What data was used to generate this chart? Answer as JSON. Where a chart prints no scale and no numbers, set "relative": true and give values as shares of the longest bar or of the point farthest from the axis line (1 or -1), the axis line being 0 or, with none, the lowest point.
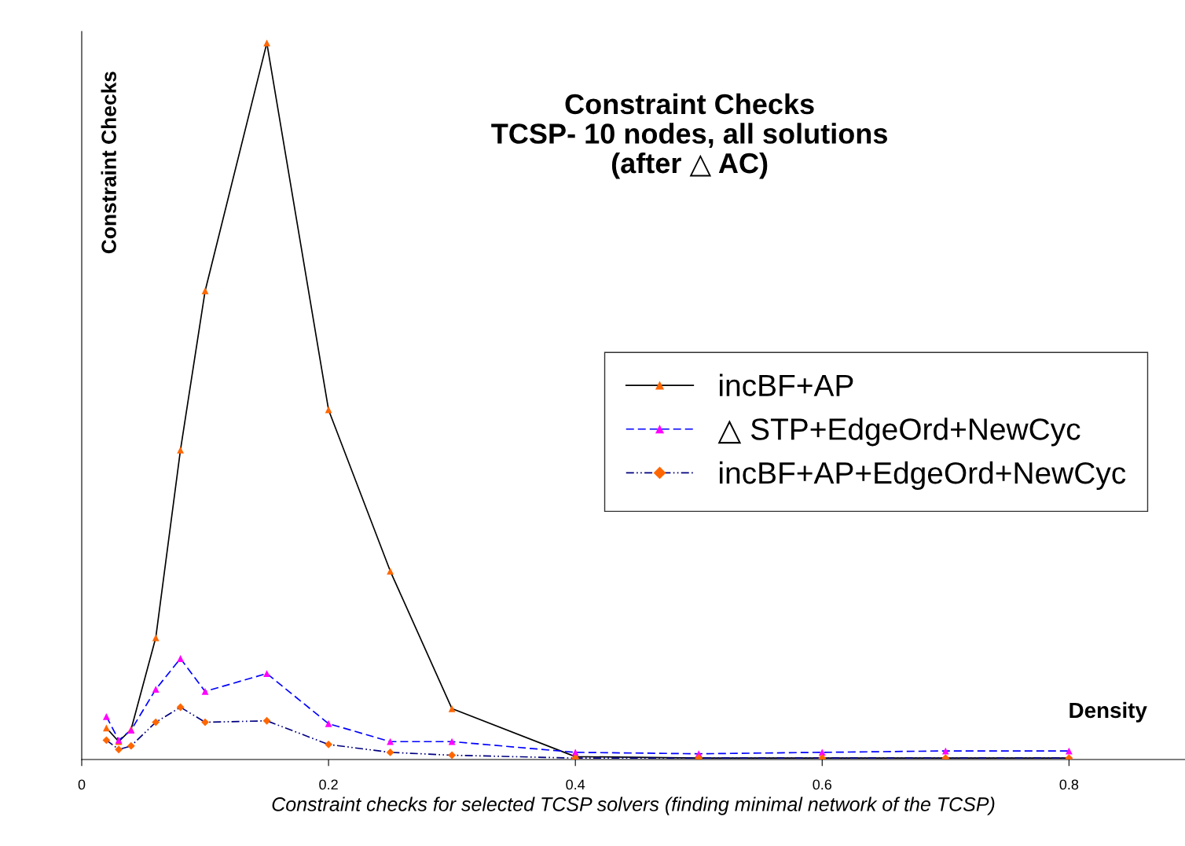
{
  "chart_data": {
    "type": "line",
    "title": "Constraint Checks\nTCSP- 10 nodes, all solutions\n(after △ AC)",
    "xlabel": "Constraint checks for selected TCSP solvers (finding minimal network of the TCSP)",
    "ylabel": "Constraint Checks",
    "annotations": [
      "Density"
    ],
    "x": [
      0.02,
      0.03,
      0.04,
      0.06,
      0.08,
      0.1,
      0.15,
      0.2,
      0.25,
      0.3,
      0.4,
      0.5,
      0.6,
      0.7,
      0.8
    ],
    "series": [
      {
        "name": "incBF+AP",
        "color": "#000000",
        "marker": "triangle",
        "line_style": "solid",
        "colors": [
          "#ff6600",
          "#ff6600",
          "#ff6600",
          "#ff6600",
          "#ff6600",
          "#ff6600",
          "#ff6600",
          "#ff6600",
          "#ff6600",
          "#ff6600",
          "#ff6600",
          "#ff6600",
          "#ff6600",
          "#ff6600",
          "#ff6600"
        ],
        "values": [
          0.044,
          0.025,
          0.042,
          0.17,
          0.432,
          0.654,
          1,
          0.488,
          0.263,
          0.071,
          0.004,
          0.002,
          0.002,
          0.002,
          0.002
        ]
      },
      {
        "name": "△ STP+EdgeOrd+NewCyc",
        "color": "#0000ff",
        "marker": "triangle",
        "line_style": "dashed",
        "colors": [
          "#ff00ff",
          "#ff00ff",
          "#ff00ff",
          "#ff00ff",
          "#ff00ff",
          "#ff00ff",
          "#ff00ff",
          "#ff00ff",
          "#ff00ff",
          "#ff00ff",
          "#ff00ff",
          "#ff00ff",
          "#ff00ff",
          "#ff00ff",
          "#ff00ff"
        ],
        "values": [
          0.06,
          0.027,
          0.041,
          0.098,
          0.141,
          0.095,
          0.12,
          0.05,
          0.025,
          0.025,
          0.01,
          0.008,
          0.01,
          0.012,
          0.012
        ]
      },
      {
        "name": "incBF+AP+EdgeOrd+NewCyc",
        "color": "#000080",
        "marker": "diamond",
        "line_style": "dashdot",
        "colors": [
          "#ff6600",
          "#ff6600",
          "#ff6600",
          "#ff6600",
          "#ff6600",
          "#ff6600",
          "#ff6600",
          "#ff6600",
          "#ff6600",
          "#ff6600",
          "#ff6600",
          "#ff6600",
          "#ff6600",
          "#ff6600",
          "#ff6600"
        ],
        "values": [
          0.027,
          0.014,
          0.019,
          0.052,
          0.073,
          0.052,
          0.054,
          0.021,
          0.01,
          0.006,
          0.002,
          0.002,
          0.002,
          0.002,
          0.002
        ]
      }
    ],
    "xlim": [
      0,
      0.894
    ],
    "xticks": [
      0,
      0.2,
      0.4,
      0.6,
      0.8
    ],
    "relative": true,
    "grid": false,
    "legend": "center right"
  }
}
